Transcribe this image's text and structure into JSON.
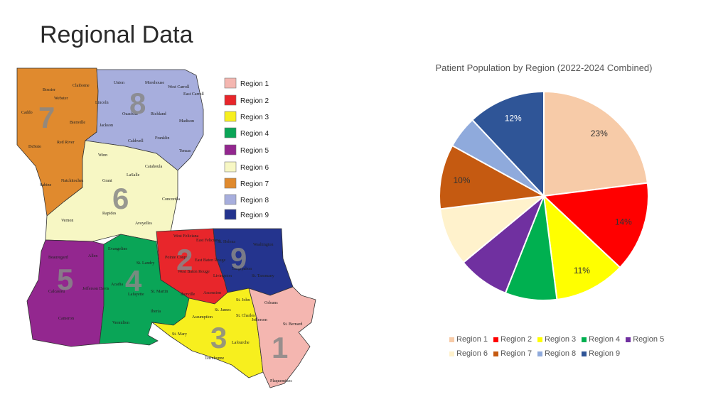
{
  "slide": {
    "title": "Regional Data"
  },
  "map": {
    "legend": [
      {
        "label": "Region 1",
        "color": "#f4b6b0"
      },
      {
        "label": "Region 2",
        "color": "#e8262b"
      },
      {
        "label": "Region 3",
        "color": "#f7ef1e"
      },
      {
        "label": "Region 4",
        "color": "#0aa557"
      },
      {
        "label": "Region 5",
        "color": "#93278f"
      },
      {
        "label": "Region 6",
        "color": "#f7f7c4"
      },
      {
        "label": "Region 7",
        "color": "#e08a2e"
      },
      {
        "label": "Region 8",
        "color": "#a7aedd"
      },
      {
        "label": "Region 9",
        "color": "#24348e"
      }
    ],
    "region_numbers": [
      "1",
      "2",
      "3",
      "4",
      "5",
      "6",
      "7",
      "8",
      "9"
    ],
    "parishes": {
      "r7": [
        "Bossier",
        "Webster",
        "Claiborne",
        "Caddo",
        "Bienville",
        "Red River",
        "DeSoto",
        "Natchitoches",
        "Sabine"
      ],
      "r8": [
        "Union",
        "Morehouse",
        "West Carroll",
        "East Carroll",
        "Lincoln",
        "Ouachita",
        "Richland",
        "Madison",
        "Jackson",
        "Caldwell",
        "Franklin",
        "Tensas"
      ],
      "r6": [
        "Winn",
        "Grant",
        "LaSalle",
        "Catahoula",
        "Concordia",
        "Rapides",
        "Vernon",
        "Avoyelles"
      ],
      "r5": [
        "Beauregard",
        "Allen",
        "Calcasieu",
        "Jefferson Davis",
        "Cameron"
      ],
      "r4": [
        "Evangeline",
        "St. Landry",
        "Acadia",
        "Lafayette",
        "St. Martin",
        "Vermilion",
        "Iberia"
      ],
      "r2": [
        "West Feliciana",
        "East Feliciana",
        "Pointe Coupee",
        "West Baton Rouge",
        "East Baton Rouge",
        "Iberville",
        "Ascension"
      ],
      "r9": [
        "St. Helena",
        "Washington",
        "Tangipahoa",
        "Livingston",
        "St. Tammany"
      ],
      "r3": [
        "Assumption",
        "St. James",
        "St. John",
        "St. Charles",
        "St. Mary",
        "Lafourche",
        "Terrebonne"
      ],
      "r1": [
        "Orleans",
        "Jefferson",
        "St. Bernard",
        "Plaquemines"
      ]
    }
  },
  "chart_data": {
    "type": "pie",
    "title": "Patient Population by Region (2022-2024 Combined)",
    "categories": [
      "Region 1",
      "Region 2",
      "Region 3",
      "Region 4",
      "Region 5",
      "Region 6",
      "Region 7",
      "Region 8",
      "Region 9"
    ],
    "values": [
      23,
      14,
      11,
      8,
      8,
      9,
      10,
      5,
      12
    ],
    "data_labels": [
      "23%",
      "14%",
      "11%",
      "",
      "",
      "",
      "10%",
      "",
      "12%"
    ],
    "colors": [
      "#f7cba8",
      "#ff0000",
      "#ffff00",
      "#00b050",
      "#7030a0",
      "#fff2cc",
      "#c55a11",
      "#8faadc",
      "#2f5597"
    ],
    "start_angle": "12 o'clock",
    "direction": "clockwise",
    "legend_position": "bottom"
  }
}
